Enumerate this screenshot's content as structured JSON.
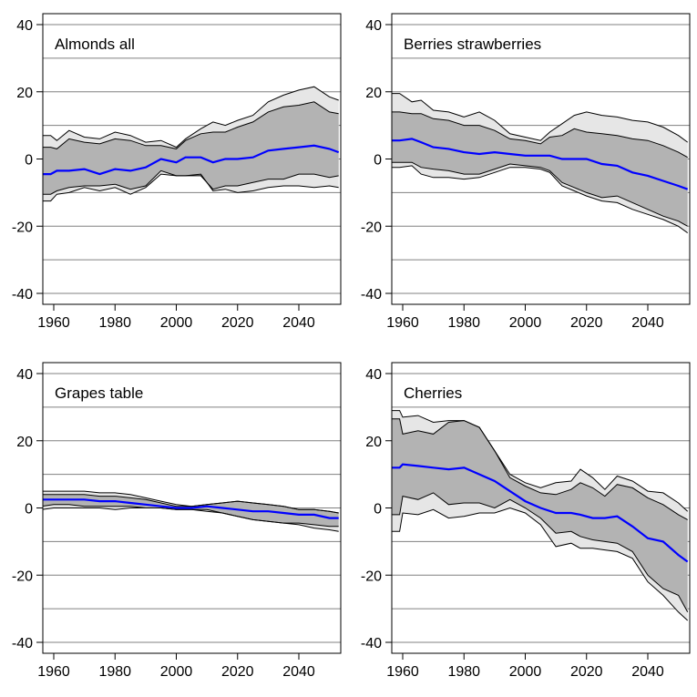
{
  "chart_data": [
    {
      "type": "area",
      "title": "Almonds all",
      "xlim": [
        1956,
        2053
      ],
      "ylim": [
        -43,
        43
      ],
      "xticks": [
        1960,
        1980,
        2000,
        2020,
        2040
      ],
      "yticks": [
        40,
        20,
        0,
        -20,
        -40
      ],
      "gridlines": [
        40,
        30,
        20,
        10,
        0,
        -10,
        -20,
        -30,
        -40
      ],
      "x": [
        1956,
        1959,
        1961,
        1965,
        1970,
        1975,
        1980,
        1985,
        1990,
        1995,
        2000,
        2003,
        2008,
        2012,
        2016,
        2020,
        2025,
        2030,
        2035,
        2040,
        2045,
        2050,
        2053
      ],
      "series": [
        {
          "name": "mean",
          "values": [
            -4.5,
            -4.5,
            -3.5,
            -3.5,
            -3,
            -4.5,
            -3,
            -3.5,
            -2.5,
            0,
            -1,
            0.5,
            0.5,
            -1,
            0,
            0,
            0.5,
            2.5,
            3,
            3.5,
            4,
            3,
            2
          ]
        },
        {
          "name": "inner_upper",
          "values": [
            3.5,
            3.5,
            3,
            6,
            5,
            4.5,
            6,
            5.5,
            4,
            4,
            3,
            5.5,
            7.5,
            8,
            8,
            9.5,
            11,
            14,
            15.5,
            16,
            17,
            14,
            13.5
          ]
        },
        {
          "name": "inner_lower",
          "values": [
            -10.5,
            -10.5,
            -9.5,
            -8.5,
            -8,
            -8,
            -7.5,
            -9,
            -8,
            -3.5,
            -5,
            -5,
            -5,
            -9,
            -8,
            -8,
            -7,
            -6,
            -6,
            -4.5,
            -4.5,
            -5.5,
            -5
          ]
        },
        {
          "name": "outer_upper",
          "values": [
            7,
            7,
            5.5,
            8.5,
            6.5,
            6,
            8,
            7,
            5,
            5.5,
            3.5,
            6,
            9,
            11,
            10,
            11.5,
            13,
            17,
            19,
            20.5,
            21.5,
            18.5,
            17.5
          ]
        },
        {
          "name": "outer_lower",
          "values": [
            -12.5,
            -12.5,
            -10.5,
            -10,
            -8.5,
            -9.5,
            -8.5,
            -10.5,
            -8.5,
            -4.5,
            -5,
            -5,
            -4.5,
            -9.5,
            -9,
            -10,
            -9.5,
            -8.5,
            -8,
            -8,
            -8.5,
            -8,
            -8.5
          ]
        }
      ]
    },
    {
      "type": "area",
      "title": "Berries strawberries",
      "xlim": [
        1956,
        2053
      ],
      "ylim": [
        -43,
        43
      ],
      "xticks": [
        1960,
        1980,
        2000,
        2020,
        2040
      ],
      "yticks": [
        40,
        20,
        0,
        -20,
        -40
      ],
      "gridlines": [
        40,
        30,
        20,
        10,
        0,
        -10,
        -20,
        -30,
        -40
      ],
      "x": [
        1956,
        1959,
        1963,
        1966,
        1970,
        1975,
        1980,
        1985,
        1990,
        1995,
        2000,
        2005,
        2008,
        2012,
        2016,
        2020,
        2025,
        2030,
        2035,
        2040,
        2045,
        2050,
        2053
      ],
      "series": [
        {
          "name": "mean",
          "values": [
            5.5,
            5.5,
            6,
            5,
            3.5,
            3,
            2,
            1.5,
            2,
            1.5,
            1,
            1,
            1,
            0,
            0,
            0,
            -1.5,
            -2,
            -4,
            -5,
            -6.5,
            -8,
            -9
          ]
        },
        {
          "name": "inner_upper",
          "values": [
            14,
            14,
            13.5,
            13.5,
            12,
            11.5,
            10,
            10,
            8.5,
            6,
            5.5,
            4.5,
            6.5,
            7,
            9,
            8,
            7.5,
            7,
            6,
            5.5,
            4,
            2,
            0.5
          ]
        },
        {
          "name": "inner_lower",
          "values": [
            -1,
            -1,
            -1,
            -2.5,
            -3,
            -3.5,
            -4.5,
            -4.5,
            -3,
            -1.5,
            -2,
            -2.5,
            -3.5,
            -7,
            -8.5,
            -10,
            -11.5,
            -11,
            -13,
            -15,
            -17,
            -18.5,
            -20
          ]
        },
        {
          "name": "outer_upper",
          "values": [
            19.5,
            19.5,
            17,
            17.5,
            14.5,
            14,
            12.5,
            14,
            11.5,
            7.5,
            6.5,
            5.5,
            8,
            10.5,
            13,
            14,
            13,
            12.5,
            11.5,
            11,
            9.5,
            7,
            5
          ]
        },
        {
          "name": "outer_lower",
          "values": [
            -2.5,
            -2.5,
            -2,
            -4.5,
            -5.5,
            -5.5,
            -6,
            -5.5,
            -4,
            -2.5,
            -2.5,
            -3,
            -4,
            -8,
            -9.5,
            -11,
            -12.5,
            -13,
            -15,
            -16.5,
            -18,
            -20,
            -22
          ]
        }
      ]
    },
    {
      "type": "area",
      "title": "Grapes table",
      "xlim": [
        1956,
        2053
      ],
      "ylim": [
        -43,
        43
      ],
      "xticks": [
        1960,
        1980,
        2000,
        2020,
        2040
      ],
      "yticks": [
        40,
        20,
        0,
        -20,
        -40
      ],
      "gridlines": [
        40,
        30,
        20,
        10,
        0,
        -10,
        -20,
        -30,
        -40
      ],
      "x": [
        1956,
        1960,
        1965,
        1970,
        1975,
        1980,
        1985,
        1990,
        1995,
        2000,
        2005,
        2010,
        2015,
        2020,
        2025,
        2030,
        2035,
        2040,
        2045,
        2050,
        2053
      ],
      "series": [
        {
          "name": "mean",
          "values": [
            2.5,
            2.5,
            2.5,
            2.5,
            2,
            2,
            1.5,
            1,
            0.5,
            0,
            0,
            0.5,
            0,
            -0.5,
            -1,
            -1,
            -1.5,
            -2,
            -2,
            -3,
            -3
          ]
        },
        {
          "name": "inner_upper",
          "values": [
            4,
            4,
            4,
            4,
            3.5,
            3.5,
            3,
            2.5,
            1.5,
            0.5,
            0.5,
            1,
            1.5,
            2,
            1.5,
            1,
            0.5,
            -0.5,
            -0.5,
            -1,
            -1.5
          ]
        },
        {
          "name": "inner_lower",
          "values": [
            0.5,
            1,
            1,
            0.5,
            0.5,
            0.5,
            0.5,
            0,
            0,
            -0.5,
            -0.5,
            -0.5,
            -1.5,
            -2.5,
            -3.5,
            -4,
            -4.5,
            -4.5,
            -5,
            -5.5,
            -5.5
          ]
        },
        {
          "name": "outer_upper",
          "values": [
            5,
            5,
            5,
            5,
            4.5,
            4.5,
            4,
            3,
            2,
            1,
            0.5,
            1,
            1.5,
            2,
            1.5,
            1,
            0.5,
            -0.5,
            -0.5,
            -1,
            -1.5
          ]
        },
        {
          "name": "outer_lower",
          "values": [
            -0.5,
            0,
            0,
            0,
            0,
            -0.5,
            0,
            0,
            0,
            -0.5,
            -0.5,
            -1,
            -1.5,
            -2.5,
            -3.5,
            -4,
            -4.5,
            -5,
            -6,
            -6.5,
            -7
          ]
        }
      ]
    },
    {
      "type": "area",
      "title": "Cherries",
      "xlim": [
        1956,
        2053
      ],
      "ylim": [
        -43,
        43
      ],
      "xticks": [
        1960,
        1980,
        2000,
        2020,
        2040
      ],
      "yticks": [
        40,
        20,
        0,
        -20,
        -40
      ],
      "gridlines": [
        40,
        30,
        20,
        10,
        0,
        -10,
        -20,
        -30,
        -40
      ],
      "x": [
        1956,
        1959,
        1960,
        1965,
        1970,
        1975,
        1980,
        1985,
        1990,
        1995,
        2000,
        2005,
        2010,
        2015,
        2018,
        2022,
        2026,
        2030,
        2035,
        2040,
        2045,
        2050,
        2053
      ],
      "series": [
        {
          "name": "mean",
          "values": [
            12,
            12,
            13,
            12.5,
            12,
            11.5,
            12,
            10,
            8,
            5,
            2,
            0,
            -1.5,
            -1.5,
            -2,
            -3,
            -3,
            -2.5,
            -5.5,
            -9,
            -10,
            -14,
            -16
          ]
        },
        {
          "name": "inner_upper",
          "values": [
            26.5,
            26.5,
            22,
            23,
            22,
            25.5,
            26,
            24,
            17,
            9,
            6.5,
            4.5,
            4,
            5.5,
            7.5,
            6,
            3.5,
            7,
            6,
            3,
            1,
            -2,
            -3.5
          ]
        },
        {
          "name": "inner_lower",
          "values": [
            -2,
            -2,
            3.5,
            2.5,
            4.5,
            1,
            1.5,
            1.5,
            0,
            2.5,
            0,
            -3,
            -7.5,
            -7,
            -8.5,
            -9.5,
            -10,
            -10.5,
            -13,
            -20,
            -24,
            -26,
            -31
          ]
        },
        {
          "name": "outer_upper",
          "values": [
            29,
            29,
            27,
            27.5,
            25.5,
            26,
            26,
            24,
            17,
            10,
            7.5,
            6,
            7.5,
            8,
            11.5,
            9,
            5.5,
            9.5,
            8,
            5,
            4.5,
            1.5,
            -1
          ]
        },
        {
          "name": "outer_lower",
          "values": [
            -7,
            -7,
            -1.5,
            -2,
            -0.5,
            -3,
            -2.5,
            -1.5,
            -1.5,
            0,
            -1.5,
            -5,
            -11.5,
            -10.5,
            -12,
            -12,
            -12.5,
            -13,
            -15,
            -22,
            -26,
            -31,
            -33.5
          ]
        }
      ]
    }
  ],
  "colors": {
    "mean": "#0000ff",
    "inner_band": "#b3b3b3",
    "outer_band": "#e6e6e6",
    "grid": "#808080",
    "frame": "#000000"
  }
}
